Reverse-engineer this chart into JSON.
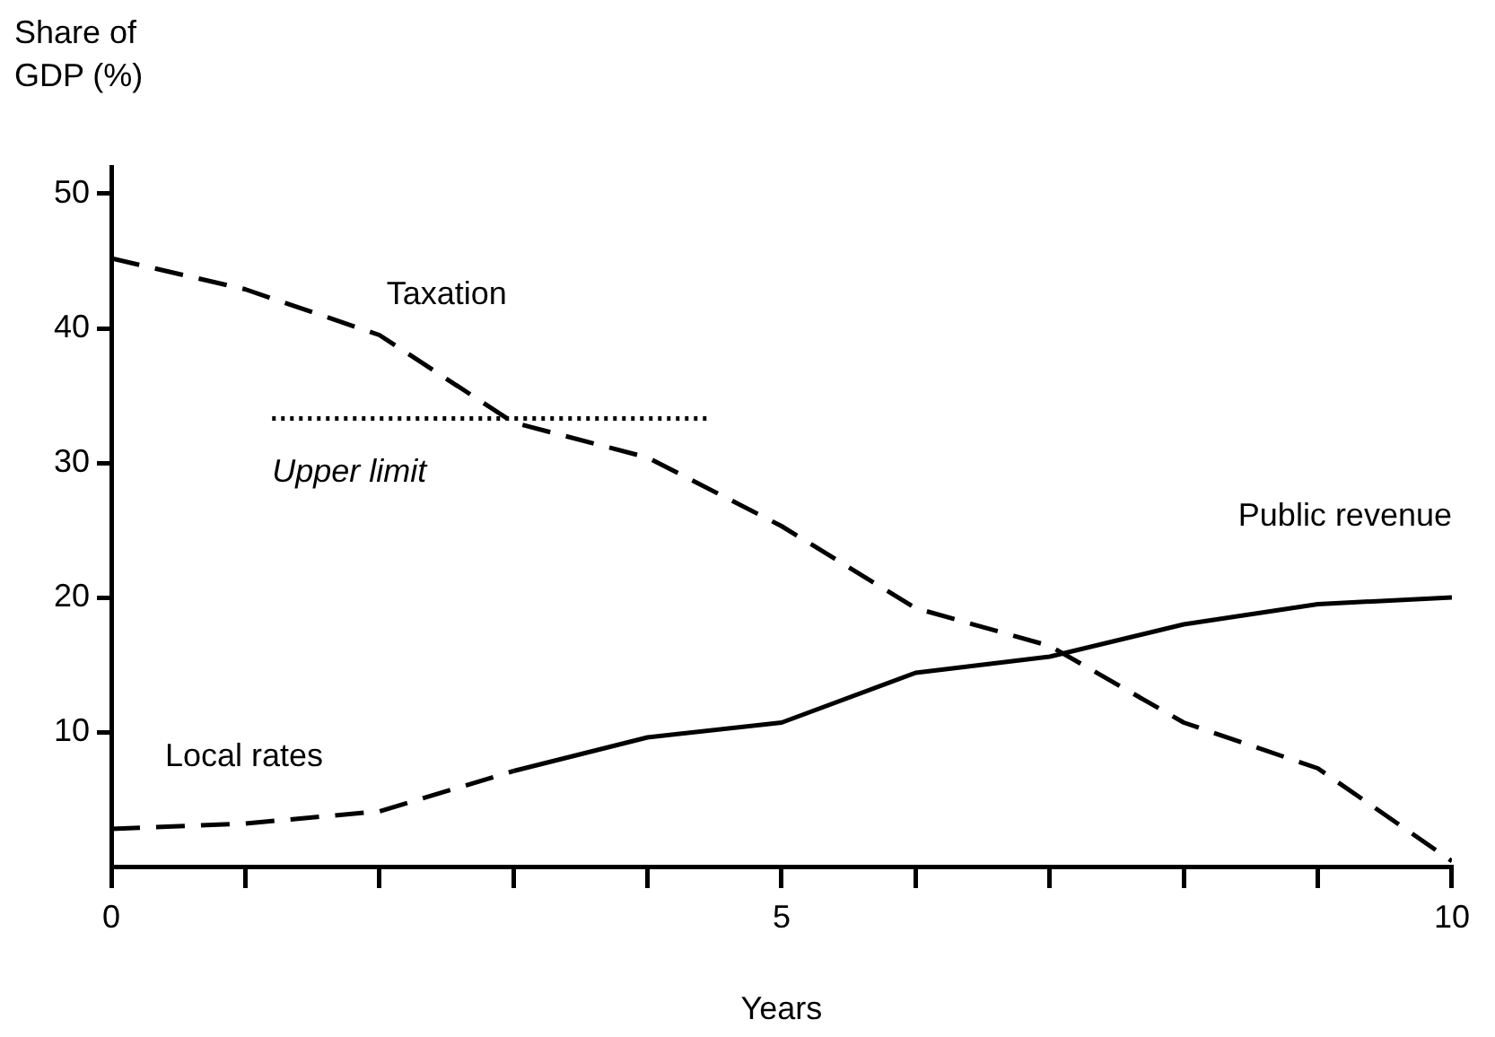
{
  "chart_data": {
    "type": "line",
    "xlabel": "Years",
    "ylabel": "Share of\nGDP (%)",
    "xlim": [
      0,
      10
    ],
    "xticks": [
      0,
      {
        "value": 1,
        "label": null
      },
      {
        "value": 2,
        "label": null
      },
      {
        "value": 3,
        "label": null
      },
      {
        "value": 4,
        "label": null
      },
      5,
      {
        "value": 6,
        "label": null
      },
      {
        "value": 7,
        "label": null
      },
      {
        "value": 8,
        "label": null
      },
      {
        "value": 9,
        "label": null
      },
      10
    ],
    "ylim": [
      0,
      52
    ],
    "yticks": [
      10,
      20,
      30,
      40,
      50
    ],
    "grid": false,
    "legend": false,
    "marker": "none",
    "series": [
      {
        "name": "Taxation",
        "color": "#000000",
        "line_style": "dashed",
        "x": [
          0,
          1,
          2,
          3,
          4,
          5,
          6,
          7,
          8,
          9,
          10
        ],
        "values": [
          45.2,
          42.9,
          39.5,
          33,
          30.4,
          25.3,
          19.2,
          16.4,
          10.7,
          7.3,
          0.4
        ]
      },
      {
        "name": "Local rates",
        "color": "#000000",
        "line_style": "dashed",
        "x": [
          0,
          1,
          2,
          3
        ],
        "values": [
          2.8,
          3.2,
          4.1,
          7.1
        ]
      },
      {
        "name": "Public revenue",
        "color": "#000000",
        "line_style": "solid",
        "x": [
          3,
          4,
          5,
          6,
          7,
          8,
          9,
          10
        ],
        "values": [
          7.1,
          9.6,
          10.7,
          14.4,
          15.6,
          18,
          19.5,
          20
        ]
      },
      {
        "name": "Upper limit",
        "color": "#000000",
        "line_style": "dotted",
        "x": [
          1.2,
          4.45
        ],
        "values": [
          33.3,
          33.3
        ]
      }
    ]
  }
}
